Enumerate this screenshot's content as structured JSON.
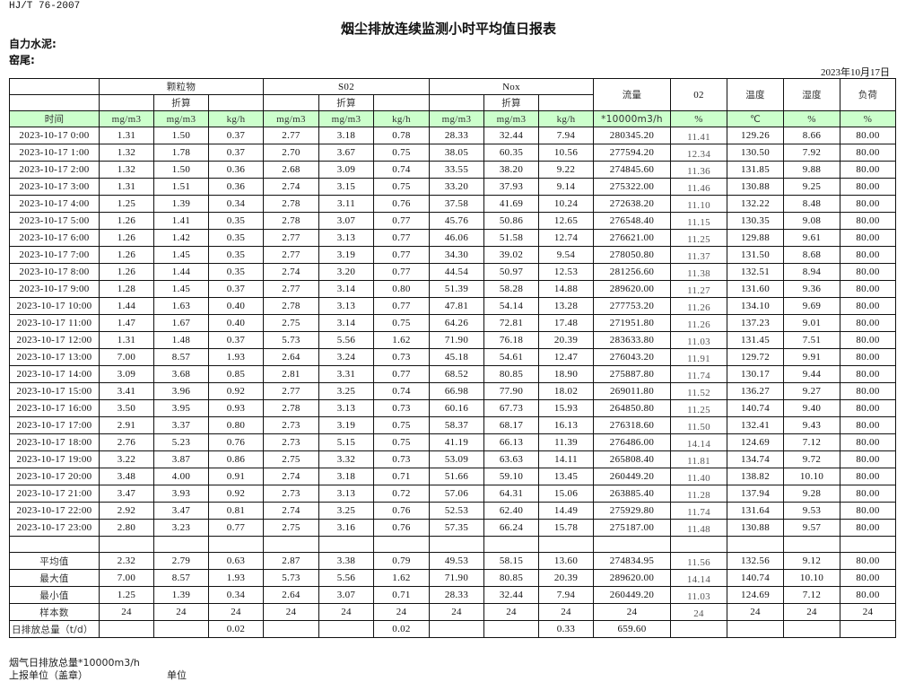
{
  "header": {
    "standard": "HJ/T  76-2007",
    "title": "烟尘排放连续监测小时平均值日报表",
    "company": "自力水泥:",
    "unit": "窑尾:",
    "date": "2023年10月17日"
  },
  "table": {
    "groups": {
      "particulate": "颗粒物",
      "so2": "S02",
      "nox": "Nox",
      "flow": "流量",
      "o2": "02",
      "temp": "温度",
      "humidity": "湿度",
      "load": "负荷"
    },
    "converted": "折算",
    "units": [
      "时间",
      "mg/m3",
      "mg/m3",
      "kg/h",
      "mg/m3",
      "mg/m3",
      "kg/h",
      "mg/m3",
      "mg/m3",
      "kg/h",
      "*10000m3/h",
      "%",
      "℃",
      "%",
      "%"
    ],
    "rows": [
      [
        "2023-10-17 0:00",
        "1.31",
        "1.50",
        "0.37",
        "2.77",
        "3.18",
        "0.78",
        "28.33",
        "32.44",
        "7.94",
        "280345.20",
        "11.41",
        "129.26",
        "8.66",
        "80.00"
      ],
      [
        "2023-10-17 1:00",
        "1.32",
        "1.78",
        "0.37",
        "2.70",
        "3.67",
        "0.75",
        "38.05",
        "60.35",
        "10.56",
        "277594.20",
        "12.34",
        "130.50",
        "7.92",
        "80.00"
      ],
      [
        "2023-10-17 2:00",
        "1.32",
        "1.50",
        "0.36",
        "2.68",
        "3.09",
        "0.74",
        "33.55",
        "38.20",
        "9.22",
        "274845.60",
        "11.36",
        "131.85",
        "9.88",
        "80.00"
      ],
      [
        "2023-10-17 3:00",
        "1.31",
        "1.51",
        "0.36",
        "2.74",
        "3.15",
        "0.75",
        "33.20",
        "37.93",
        "9.14",
        "275322.00",
        "11.46",
        "130.88",
        "9.25",
        "80.00"
      ],
      [
        "2023-10-17 4:00",
        "1.25",
        "1.39",
        "0.34",
        "2.78",
        "3.11",
        "0.76",
        "37.58",
        "41.69",
        "10.24",
        "272638.20",
        "11.10",
        "132.22",
        "8.48",
        "80.00"
      ],
      [
        "2023-10-17 5:00",
        "1.26",
        "1.41",
        "0.35",
        "2.78",
        "3.07",
        "0.77",
        "45.76",
        "50.86",
        "12.65",
        "276548.40",
        "11.15",
        "130.35",
        "9.08",
        "80.00"
      ],
      [
        "2023-10-17 6:00",
        "1.26",
        "1.42",
        "0.35",
        "2.77",
        "3.13",
        "0.77",
        "46.06",
        "51.58",
        "12.74",
        "276621.00",
        "11.25",
        "129.88",
        "9.61",
        "80.00"
      ],
      [
        "2023-10-17 7:00",
        "1.26",
        "1.45",
        "0.35",
        "2.77",
        "3.19",
        "0.77",
        "34.30",
        "39.02",
        "9.54",
        "278050.80",
        "11.37",
        "131.50",
        "8.68",
        "80.00"
      ],
      [
        "2023-10-17 8:00",
        "1.26",
        "1.44",
        "0.35",
        "2.74",
        "3.20",
        "0.77",
        "44.54",
        "50.97",
        "12.53",
        "281256.60",
        "11.38",
        "132.51",
        "8.94",
        "80.00"
      ],
      [
        "2023-10-17 9:00",
        "1.28",
        "1.45",
        "0.37",
        "2.77",
        "3.14",
        "0.80",
        "51.39",
        "58.28",
        "14.88",
        "289620.00",
        "11.27",
        "131.60",
        "9.36",
        "80.00"
      ],
      [
        "2023-10-17 10:00",
        "1.44",
        "1.63",
        "0.40",
        "2.78",
        "3.13",
        "0.77",
        "47.81",
        "54.14",
        "13.28",
        "277753.20",
        "11.26",
        "134.10",
        "9.69",
        "80.00"
      ],
      [
        "2023-10-17 11:00",
        "1.47",
        "1.67",
        "0.40",
        "2.75",
        "3.14",
        "0.75",
        "64.26",
        "72.81",
        "17.48",
        "271951.80",
        "11.26",
        "137.23",
        "9.01",
        "80.00"
      ],
      [
        "2023-10-17 12:00",
        "1.31",
        "1.48",
        "0.37",
        "5.73",
        "5.56",
        "1.62",
        "71.90",
        "76.18",
        "20.39",
        "283633.80",
        "11.03",
        "131.45",
        "7.51",
        "80.00"
      ],
      [
        "2023-10-17 13:00",
        "7.00",
        "8.57",
        "1.93",
        "2.64",
        "3.24",
        "0.73",
        "45.18",
        "54.61",
        "12.47",
        "276043.20",
        "11.91",
        "129.72",
        "9.91",
        "80.00"
      ],
      [
        "2023-10-17 14:00",
        "3.09",
        "3.68",
        "0.85",
        "2.81",
        "3.31",
        "0.77",
        "68.52",
        "80.85",
        "18.90",
        "275887.80",
        "11.74",
        "130.17",
        "9.44",
        "80.00"
      ],
      [
        "2023-10-17 15:00",
        "3.41",
        "3.96",
        "0.92",
        "2.77",
        "3.25",
        "0.74",
        "66.98",
        "77.90",
        "18.02",
        "269011.80",
        "11.52",
        "136.27",
        "9.27",
        "80.00"
      ],
      [
        "2023-10-17 16:00",
        "3.50",
        "3.95",
        "0.93",
        "2.78",
        "3.13",
        "0.73",
        "60.16",
        "67.73",
        "15.93",
        "264850.80",
        "11.25",
        "140.74",
        "9.40",
        "80.00"
      ],
      [
        "2023-10-17 17:00",
        "2.91",
        "3.37",
        "0.80",
        "2.73",
        "3.19",
        "0.75",
        "58.37",
        "68.17",
        "16.13",
        "276318.60",
        "11.50",
        "132.41",
        "9.43",
        "80.00"
      ],
      [
        "2023-10-17 18:00",
        "2.76",
        "5.23",
        "0.76",
        "2.73",
        "5.15",
        "0.75",
        "41.19",
        "66.13",
        "11.39",
        "276486.00",
        "14.14",
        "124.69",
        "7.12",
        "80.00"
      ],
      [
        "2023-10-17 19:00",
        "3.22",
        "3.87",
        "0.86",
        "2.75",
        "3.32",
        "0.73",
        "53.09",
        "63.63",
        "14.11",
        "265808.40",
        "11.81",
        "134.74",
        "9.72",
        "80.00"
      ],
      [
        "2023-10-17 20:00",
        "3.48",
        "4.00",
        "0.91",
        "2.74",
        "3.18",
        "0.71",
        "51.66",
        "59.10",
        "13.45",
        "260449.20",
        "11.40",
        "138.82",
        "10.10",
        "80.00"
      ],
      [
        "2023-10-17 21:00",
        "3.47",
        "3.93",
        "0.92",
        "2.73",
        "3.13",
        "0.72",
        "57.06",
        "64.31",
        "15.06",
        "263885.40",
        "11.28",
        "137.94",
        "9.28",
        "80.00"
      ],
      [
        "2023-10-17 22:00",
        "2.92",
        "3.47",
        "0.81",
        "2.74",
        "3.25",
        "0.76",
        "52.53",
        "62.40",
        "14.49",
        "275929.80",
        "11.74",
        "131.64",
        "9.53",
        "80.00"
      ],
      [
        "2023-10-17 23:00",
        "2.80",
        "3.23",
        "0.77",
        "2.75",
        "3.16",
        "0.76",
        "57.35",
        "66.24",
        "15.78",
        "275187.00",
        "11.48",
        "130.88",
        "9.57",
        "80.00"
      ]
    ],
    "summary": [
      [
        "平均值",
        "2.32",
        "2.79",
        "0.63",
        "2.87",
        "3.38",
        "0.79",
        "49.53",
        "58.15",
        "13.60",
        "274834.95",
        "11.56",
        "132.56",
        "9.12",
        "80.00"
      ],
      [
        "最大值",
        "7.00",
        "8.57",
        "1.93",
        "5.73",
        "5.56",
        "1.62",
        "71.90",
        "80.85",
        "20.39",
        "289620.00",
        "14.14",
        "140.74",
        "10.10",
        "80.00"
      ],
      [
        "最小值",
        "1.25",
        "1.39",
        "0.34",
        "2.64",
        "3.07",
        "0.71",
        "28.33",
        "32.44",
        "7.94",
        "260449.20",
        "11.03",
        "124.69",
        "7.12",
        "80.00"
      ],
      [
        "样本数",
        "24",
        "24",
        "24",
        "24",
        "24",
        "24",
        "24",
        "24",
        "24",
        "24",
        "24",
        "24",
        "24",
        "24"
      ],
      [
        "日排放总量（t/d）",
        "",
        "",
        "0.02",
        "",
        "",
        "0.02",
        "",
        "",
        "0.33",
        "659.60",
        "",
        "",
        "",
        ""
      ]
    ]
  },
  "footer": {
    "flue_gas_note": "烟气日排放总量*10000m3/h",
    "reporter": "上报单位（盖章）",
    "unit": "单位"
  },
  "colors": {
    "unit_row_bg": "#ccffcc",
    "border": "#111111"
  }
}
